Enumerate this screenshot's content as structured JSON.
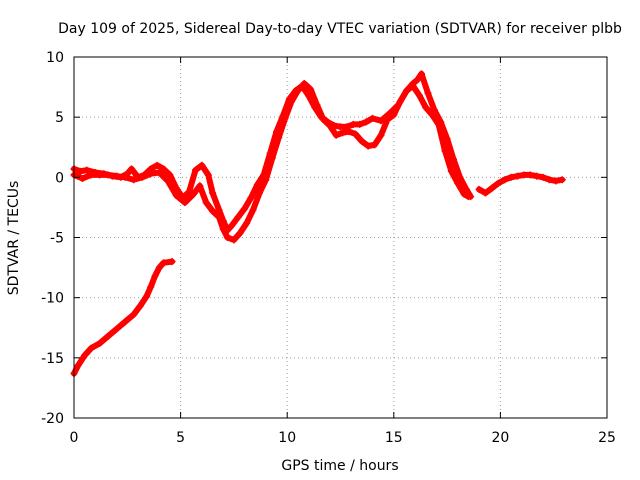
{
  "chart_data": {
    "type": "scatter",
    "title": "Day 109 of 2025, Sidereal Day-to-day VTEC variation (SDTVAR) for receiver plbb",
    "xlabel": "GPS time / hours",
    "ylabel": "SDTVAR / TECUs",
    "xlim": [
      0,
      25
    ],
    "ylim": [
      -20,
      10
    ],
    "xticks": [
      0,
      5,
      10,
      15,
      20,
      25
    ],
    "yticks": [
      -20,
      -15,
      -10,
      -5,
      0,
      5,
      10
    ],
    "xtick_labels": [
      "0",
      "5",
      "10",
      "15",
      "20",
      "25"
    ],
    "ytick_labels": [
      "-20",
      "-15",
      "-10",
      "-5",
      "0",
      "5",
      "10"
    ],
    "grid": true,
    "marker": "plus",
    "color": "#ff0000",
    "series": [
      {
        "name": "low-branch",
        "points": [
          [
            0.0,
            -16.3
          ],
          [
            0.2,
            -15.6
          ],
          [
            0.5,
            -14.8
          ],
          [
            0.8,
            -14.2
          ],
          [
            1.2,
            -13.8
          ],
          [
            1.6,
            -13.2
          ],
          [
            2.0,
            -12.6
          ],
          [
            2.4,
            -12.0
          ],
          [
            2.8,
            -11.4
          ],
          [
            3.1,
            -10.7
          ],
          [
            3.4,
            -9.9
          ],
          [
            3.6,
            -9.1
          ],
          [
            3.8,
            -8.2
          ],
          [
            4.0,
            -7.5
          ],
          [
            4.2,
            -7.1
          ],
          [
            4.6,
            -7.0
          ]
        ]
      },
      {
        "name": "track-a",
        "points": [
          [
            0.0,
            0.7
          ],
          [
            0.3,
            0.5
          ],
          [
            0.6,
            0.6
          ],
          [
            1.0,
            0.4
          ],
          [
            1.4,
            0.3
          ],
          [
            1.8,
            0.1
          ],
          [
            2.2,
            0.0
          ],
          [
            2.5,
            0.3
          ],
          [
            2.7,
            0.7
          ],
          [
            3.0,
            0.0
          ],
          [
            3.3,
            0.2
          ],
          [
            3.6,
            0.7
          ],
          [
            3.9,
            1.0
          ],
          [
            4.2,
            0.7
          ],
          [
            4.5,
            0.2
          ],
          [
            4.8,
            -0.9
          ],
          [
            5.1,
            -1.7
          ],
          [
            5.4,
            -1.2
          ],
          [
            5.7,
            0.6
          ],
          [
            6.0,
            1.0
          ],
          [
            6.3,
            0.2
          ],
          [
            6.5,
            -1.3
          ],
          [
            6.8,
            -2.7
          ],
          [
            7.0,
            -3.6
          ],
          [
            7.2,
            -4.4
          ],
          [
            7.4,
            -4.0
          ],
          [
            7.7,
            -3.3
          ],
          [
            8.0,
            -2.6
          ],
          [
            8.3,
            -1.7
          ],
          [
            8.6,
            -0.6
          ],
          [
            8.9,
            0.2
          ],
          [
            9.2,
            2.0
          ],
          [
            9.5,
            3.8
          ],
          [
            9.8,
            5.1
          ],
          [
            10.1,
            6.5
          ],
          [
            10.4,
            7.2
          ],
          [
            10.7,
            7.6
          ],
          [
            11.0,
            6.8
          ],
          [
            11.3,
            5.8
          ],
          [
            11.6,
            5.0
          ],
          [
            11.9,
            4.6
          ],
          [
            12.2,
            4.3
          ],
          [
            12.5,
            4.2
          ],
          [
            12.8,
            4.2
          ],
          [
            13.1,
            4.4
          ],
          [
            13.4,
            4.4
          ],
          [
            13.7,
            4.6
          ],
          [
            14.0,
            4.9
          ],
          [
            14.4,
            4.7
          ],
          [
            14.8,
            5.3
          ],
          [
            15.2,
            6.0
          ],
          [
            15.6,
            7.2
          ],
          [
            15.9,
            7.8
          ],
          [
            16.1,
            8.1
          ],
          [
            16.3,
            8.6
          ],
          [
            16.6,
            7.0
          ],
          [
            16.9,
            5.6
          ],
          [
            17.2,
            4.6
          ],
          [
            17.5,
            3.2
          ],
          [
            17.8,
            1.5
          ],
          [
            18.1,
            0.0
          ],
          [
            18.4,
            -1.0
          ],
          [
            18.6,
            -1.6
          ]
        ]
      },
      {
        "name": "track-b",
        "points": [
          [
            0.0,
            0.2
          ],
          [
            0.4,
            -0.1
          ],
          [
            0.8,
            0.2
          ],
          [
            1.2,
            0.2
          ],
          [
            1.6,
            0.2
          ],
          [
            2.0,
            0.1
          ],
          [
            2.4,
            0.0
          ],
          [
            2.8,
            -0.2
          ],
          [
            3.2,
            0.0
          ],
          [
            3.6,
            0.3
          ],
          [
            4.0,
            0.4
          ],
          [
            4.4,
            -0.3
          ],
          [
            4.8,
            -1.5
          ],
          [
            5.2,
            -2.1
          ],
          [
            5.6,
            -1.4
          ],
          [
            5.9,
            -0.7
          ],
          [
            6.2,
            -2.1
          ],
          [
            6.5,
            -2.8
          ],
          [
            6.8,
            -3.3
          ],
          [
            7.0,
            -4.3
          ],
          [
            7.2,
            -5.0
          ],
          [
            7.5,
            -5.2
          ],
          [
            7.8,
            -4.6
          ],
          [
            8.1,
            -3.8
          ],
          [
            8.4,
            -2.7
          ],
          [
            8.7,
            -1.3
          ],
          [
            9.0,
            -0.2
          ],
          [
            9.3,
            1.6
          ],
          [
            9.6,
            3.3
          ],
          [
            9.9,
            4.9
          ],
          [
            10.2,
            6.3
          ],
          [
            10.5,
            7.2
          ],
          [
            10.8,
            7.8
          ],
          [
            11.1,
            7.3
          ],
          [
            11.4,
            6.0
          ],
          [
            11.7,
            4.8
          ],
          [
            12.0,
            4.3
          ],
          [
            12.3,
            3.5
          ],
          [
            12.6,
            3.7
          ],
          [
            12.9,
            3.8
          ],
          [
            13.2,
            3.6
          ],
          [
            13.5,
            3.0
          ],
          [
            13.8,
            2.6
          ],
          [
            14.1,
            2.7
          ],
          [
            14.4,
            3.5
          ],
          [
            14.7,
            4.8
          ],
          [
            15.0,
            5.2
          ],
          [
            15.3,
            6.3
          ],
          [
            15.6,
            7.2
          ],
          [
            15.9,
            7.6
          ],
          [
            16.2,
            6.8
          ],
          [
            16.5,
            5.8
          ],
          [
            16.8,
            5.2
          ],
          [
            17.1,
            4.4
          ],
          [
            17.4,
            2.2
          ],
          [
            17.7,
            0.5
          ],
          [
            18.0,
            -0.5
          ],
          [
            18.3,
            -1.4
          ],
          [
            18.5,
            -1.6
          ]
        ]
      },
      {
        "name": "late-branch",
        "points": [
          [
            19.0,
            -1.0
          ],
          [
            19.3,
            -1.3
          ],
          [
            19.6,
            -0.9
          ],
          [
            19.9,
            -0.5
          ],
          [
            20.2,
            -0.2
          ],
          [
            20.5,
            0.0
          ],
          [
            20.8,
            0.1
          ],
          [
            21.1,
            0.2
          ],
          [
            21.4,
            0.2
          ],
          [
            21.7,
            0.1
          ],
          [
            22.0,
            0.0
          ],
          [
            22.3,
            -0.2
          ],
          [
            22.6,
            -0.3
          ],
          [
            22.9,
            -0.2
          ]
        ]
      }
    ]
  }
}
